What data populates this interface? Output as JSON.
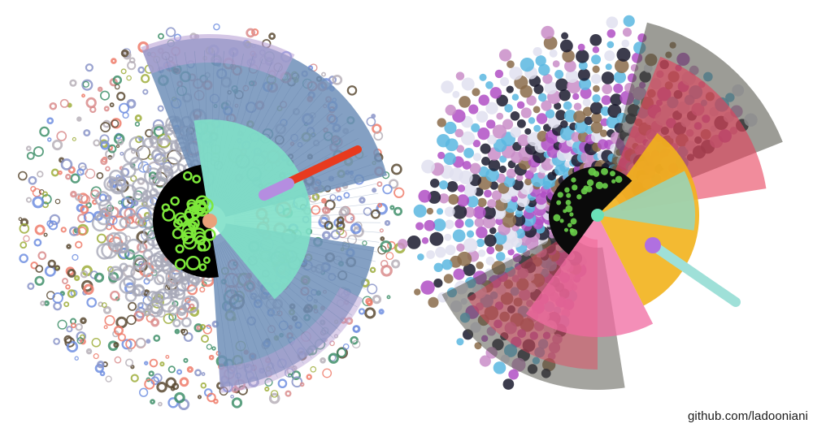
{
  "credit": "github.com/ladooniani",
  "palette": {
    "left_outer": [
      "#ee7b6a",
      "#8a94c8",
      "#6f8ee0",
      "#9fae3c",
      "#3f8f6a",
      "#5a4a32",
      "#b7b0b8",
      "#d98c8c"
    ],
    "left_wing": "#6f8fb8",
    "left_wing_edge": "#b9a2d6",
    "left_fan": "#7fe0c8",
    "left_core": "#7de83a",
    "left_core_dark": "#000000",
    "left_beam": "#e83a1e",
    "left_beam_tip": "#b58de0",
    "right_spokes": [
      "#5ab7e0",
      "#b04fc4",
      "#c98dc8",
      "#1a1a2e",
      "#8a6b4a",
      "#e0e0f0"
    ],
    "right_wing_dark": "#4a4a40",
    "right_wing_red": "#e8405a",
    "right_fan_yellow": "#f2b21c",
    "right_fan_pink": "#f06aa0",
    "right_fan_teal": "#8fd8c8",
    "right_core": "#0a0a0a",
    "right_beam": "#9fe0d8"
  }
}
